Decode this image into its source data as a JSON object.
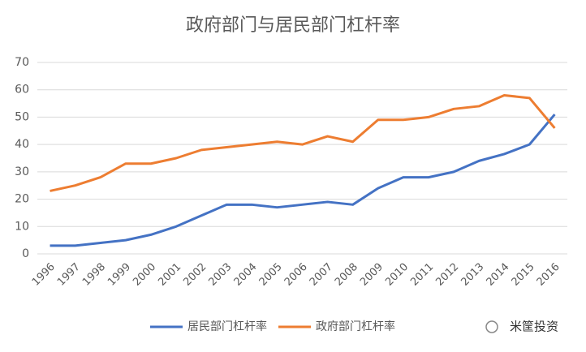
{
  "chart_data": {
    "type": "line",
    "title": "政府部门与居民部门杠杆率",
    "categories": [
      "1996",
      "1997",
      "1998",
      "1999",
      "2000",
      "2001",
      "2002",
      "2003",
      "2004",
      "2005",
      "2006",
      "2007",
      "2008",
      "2009",
      "2010",
      "2011",
      "2012",
      "2013",
      "2014",
      "2015",
      "2016"
    ],
    "series": [
      {
        "name": "居民部门杠杆率",
        "color": "#4472c4",
        "values": [
          3,
          3,
          4,
          5,
          7,
          10,
          14,
          18,
          18,
          17,
          18,
          19,
          18,
          24,
          28,
          28,
          30,
          34,
          36.5,
          40,
          51
        ]
      },
      {
        "name": "政府部门杠杆率",
        "color": "#ed7d31",
        "values": [
          23,
          25,
          28,
          33,
          33,
          35,
          38,
          39,
          40,
          41,
          40,
          43,
          41,
          49,
          49,
          50,
          53,
          54,
          58,
          57,
          46
        ]
      }
    ],
    "ylim": [
      0,
      70
    ],
    "yticks": [
      0,
      10,
      20,
      30,
      40,
      50,
      60,
      70
    ],
    "grid": true,
    "legend": "bottom",
    "watermark": "米筐投资"
  }
}
